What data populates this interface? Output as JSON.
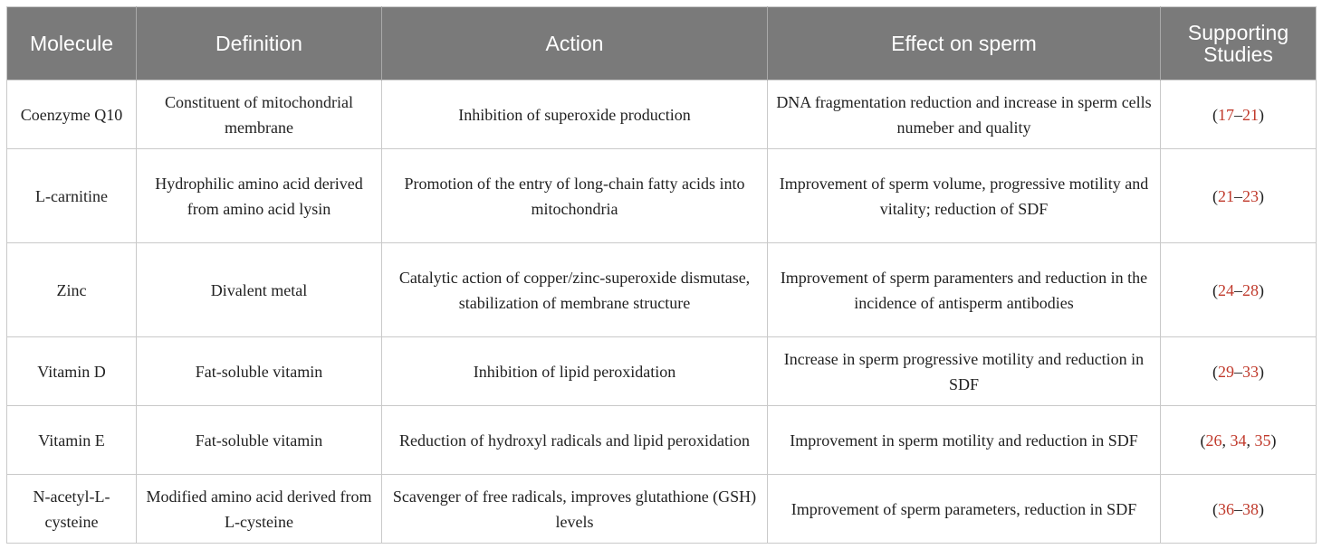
{
  "headers": [
    "Molecule",
    "Definition",
    "Action",
    "Effect on sperm",
    "Supporting Studies"
  ],
  "rows": [
    {
      "molecule": "Coenzyme Q10",
      "definition": "Constituent of mitochondrial membrane",
      "action": "Inhibition of superoxide production",
      "effect": "DNA fragmentation reduction and increase in sperm cells numeber and quality",
      "refs": [
        "(",
        "17",
        "–",
        "21",
        ")"
      ]
    },
    {
      "molecule": "L-carnitine",
      "definition": "Hydrophilic amino acid derived from amino acid lysin",
      "action": "Promotion of the entry of long-chain fatty acids into mitochondria",
      "effect": "Improvement of sperm volume, progressive motility and vitality; reduction of SDF",
      "refs": [
        "(",
        "21",
        "–",
        "23",
        ")"
      ]
    },
    {
      "molecule": "Zinc",
      "definition": "Divalent metal",
      "action": "Catalytic action of copper/zinc-superoxide dismutase, stabilization of membrane structure",
      "effect": "Improvement of sperm paramenters and reduction in the incidence of antisperm antibodies",
      "refs": [
        "(",
        "24",
        "–",
        "28",
        ")"
      ]
    },
    {
      "molecule": "Vitamin D",
      "definition": "Fat-soluble vitamin",
      "action": "Inhibition of lipid peroxidation",
      "effect": "Increase in sperm progressive motility and reduction in SDF",
      "refs": [
        "(",
        "29",
        "–",
        "33",
        ")"
      ]
    },
    {
      "molecule": "Vitamin E",
      "definition": "Fat-soluble vitamin",
      "action": "Reduction of hydroxyl radicals and lipid peroxidation",
      "effect": "Improvement in sperm motility and reduction in SDF",
      "refs": [
        "(",
        "26",
        ", ",
        "34",
        ", ",
        "35",
        ")"
      ]
    },
    {
      "molecule": "N-acetyl-L-cysteine",
      "definition": "Modified amino acid derived from L-cysteine",
      "action": "Scavenger of free radicals, improves glutathione (GSH) levels",
      "effect": "Improvement of sperm parameters, reduction in SDF",
      "refs": [
        "(",
        "36",
        "–",
        "38",
        ")"
      ]
    }
  ]
}
